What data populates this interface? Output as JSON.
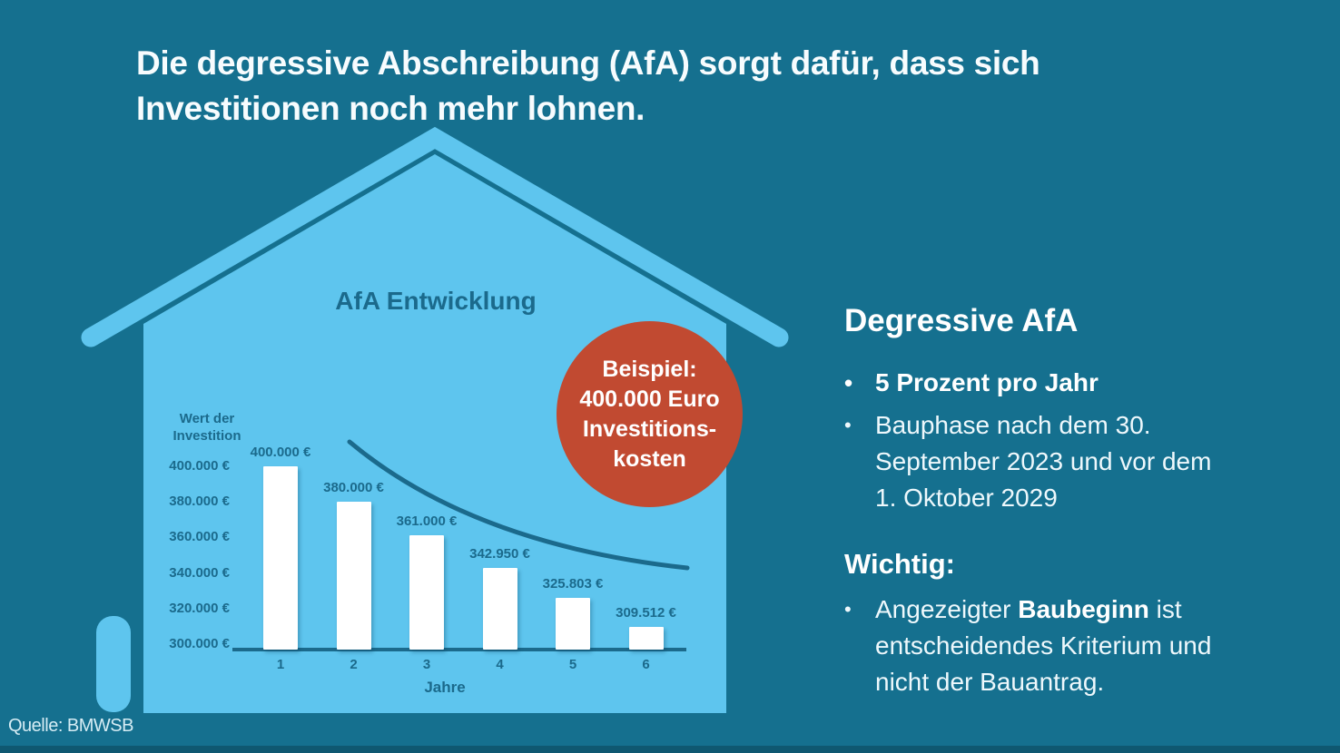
{
  "title": {
    "line1": "Die degressive Abschreibung (AfA) sorgt dafür, dass sich",
    "line2": "Investitionen noch mehr lohnen."
  },
  "badge": {
    "lines": [
      "Beispiel:",
      "400.000 Euro",
      "Investitions-",
      "kosten"
    ]
  },
  "panel": {
    "heading": "Degressive AfA",
    "bullets": [
      "5 Prozent pro Jahr",
      "Bauphase nach dem 30. September 2023 und vor dem 1. Oktober 2029"
    ],
    "wichtig": {
      "heading": "Wichtig:",
      "bullet": {
        "prefix": "Angezeigter ",
        "bold": "Baubeginn",
        "suffix": " ist entscheidendes Kriterium und nicht der Bauantrag."
      }
    }
  },
  "chart_data": {
    "type": "bar",
    "title": "AfA Entwicklung",
    "ylabel": "Wert der Investition",
    "xlabel": "Jahre",
    "categories": [
      "1",
      "2",
      "3",
      "4",
      "5",
      "6"
    ],
    "values": [
      400000,
      380000,
      361000,
      342950,
      325803,
      309512
    ],
    "bar_labels": [
      "400.000 €",
      "380.000 €",
      "361.000 €",
      "342.950 €",
      "325.803 €",
      "309.512 €"
    ],
    "y_tick_labels": [
      "400.000 €",
      "380.000 €",
      "360.000 €",
      "340.000 €",
      "320.000 €",
      "300.000 €"
    ],
    "y_tick_values": [
      400000,
      380000,
      360000,
      340000,
      320000,
      300000
    ],
    "ylim": [
      300000,
      400000
    ],
    "bar_color": "#ffffff",
    "grid": false,
    "legend": "none",
    "annotation": "descending concave trend curve over the bars"
  },
  "source": "Quelle: BMWSB",
  "colors": {
    "background": "#15708f",
    "house_light_blue": "#5ec5ee",
    "chart_ink": "#1b6a8c",
    "badge_red": "#c14a31",
    "text_white": "#f7fcfe"
  }
}
